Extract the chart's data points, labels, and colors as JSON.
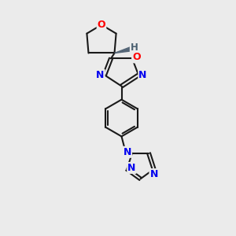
{
  "background_color": "#ebebeb",
  "bond_color": "#1a1a1a",
  "atom_colors": {
    "O": "#ff0000",
    "N": "#0000ee",
    "C": "#1a1a1a",
    "H": "#4a6070"
  },
  "figsize": [
    3.0,
    3.0
  ],
  "dpi": 100
}
